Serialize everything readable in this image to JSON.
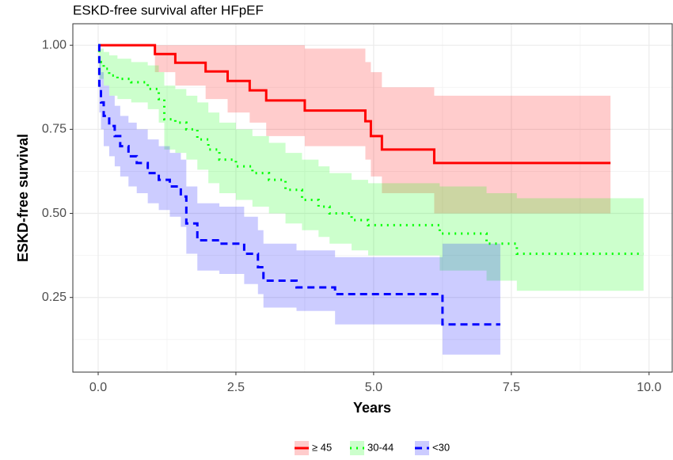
{
  "chart_data": {
    "type": "step",
    "title": "ESKD-free survival after HFpEF",
    "xlabel": "Years",
    "ylabel": "ESKD-free survival",
    "xlim": [
      -0.46,
      10.42
    ],
    "ylim": [
      0.028,
      1.064
    ],
    "xticks": [
      {
        "value": 0,
        "label": "0.0"
      },
      2.5,
      {
        "value": 5,
        "label": "5.0"
      },
      7.5,
      {
        "value": 10,
        "label": "10.0"
      }
    ],
    "yticks": [
      0.25,
      {
        "value": 0.5,
        "label": "0.50"
      },
      0.75,
      {
        "value": 1,
        "label": "1.00"
      }
    ],
    "grid": true,
    "legend": "bottom",
    "series": [
      {
        "name": "≥ 45",
        "color": "#ff0000",
        "dash": "solid",
        "x": [
          0,
          1.03,
          1.4,
          1.95,
          2.35,
          2.75,
          3.05,
          3.75,
          4.85,
          4.95,
          5.15,
          6.1,
          9.3
        ],
        "values": [
          1.0,
          0.974,
          0.948,
          0.922,
          0.894,
          0.866,
          0.836,
          0.806,
          0.774,
          0.73,
          0.69,
          0.65,
          0.65
        ],
        "upper": [
          1.0,
          1.0,
          1.0,
          1.0,
          1.0,
          1.0,
          1.0,
          0.99,
          0.95,
          0.92,
          0.875,
          0.85,
          0.85
        ],
        "lower": [
          1.0,
          0.92,
          0.88,
          0.84,
          0.8,
          0.77,
          0.73,
          0.7,
          0.66,
          0.61,
          0.56,
          0.5,
          0.5
        ]
      },
      {
        "name": "30-44",
        "color": "#00ff00",
        "dash": "dotted",
        "x": [
          0,
          0.02,
          0.1,
          0.2,
          0.35,
          0.6,
          0.9,
          1.1,
          1.2,
          1.4,
          1.6,
          1.8,
          2.0,
          2.2,
          2.5,
          2.8,
          3.1,
          3.4,
          3.7,
          4.0,
          4.2,
          4.6,
          4.9,
          6.2,
          7.05,
          7.6,
          9.9
        ],
        "values": [
          1.0,
          0.95,
          0.93,
          0.91,
          0.9,
          0.89,
          0.87,
          0.84,
          0.78,
          0.77,
          0.75,
          0.72,
          0.69,
          0.66,
          0.64,
          0.62,
          0.6,
          0.57,
          0.54,
          0.52,
          0.5,
          0.48,
          0.465,
          0.44,
          0.41,
          0.38,
          0.38
        ],
        "upper": [
          1.0,
          0.99,
          0.98,
          0.97,
          0.96,
          0.95,
          0.94,
          0.92,
          0.88,
          0.87,
          0.85,
          0.83,
          0.8,
          0.77,
          0.75,
          0.73,
          0.71,
          0.68,
          0.66,
          0.64,
          0.62,
          0.6,
          0.59,
          0.58,
          0.56,
          0.545,
          0.545
        ],
        "lower": [
          1.0,
          0.9,
          0.88,
          0.85,
          0.84,
          0.83,
          0.81,
          0.77,
          0.69,
          0.68,
          0.66,
          0.63,
          0.59,
          0.56,
          0.54,
          0.52,
          0.5,
          0.47,
          0.45,
          0.43,
          0.41,
          0.39,
          0.375,
          0.33,
          0.3,
          0.27,
          0.27
        ]
      },
      {
        "name": "<30",
        "color": "#0000ff",
        "dash": "dashed",
        "x": [
          0,
          0.02,
          0.05,
          0.1,
          0.2,
          0.3,
          0.4,
          0.55,
          0.7,
          0.9,
          1.1,
          1.3,
          1.5,
          1.6,
          1.8,
          2.2,
          2.65,
          2.9,
          3.0,
          3.6,
          4.3,
          6.25,
          7.3
        ],
        "values": [
          1.0,
          0.88,
          0.83,
          0.79,
          0.76,
          0.73,
          0.7,
          0.67,
          0.65,
          0.62,
          0.6,
          0.58,
          0.55,
          0.47,
          0.42,
          0.41,
          0.38,
          0.34,
          0.3,
          0.28,
          0.26,
          0.17,
          0.17
        ],
        "upper": [
          1.0,
          0.95,
          0.92,
          0.88,
          0.85,
          0.82,
          0.79,
          0.77,
          0.75,
          0.72,
          0.7,
          0.68,
          0.66,
          0.58,
          0.53,
          0.52,
          0.49,
          0.45,
          0.41,
          0.39,
          0.37,
          0.41,
          0.41
        ],
        "lower": [
          1.0,
          0.8,
          0.75,
          0.7,
          0.67,
          0.64,
          0.61,
          0.58,
          0.56,
          0.53,
          0.51,
          0.49,
          0.46,
          0.38,
          0.33,
          0.32,
          0.29,
          0.26,
          0.22,
          0.21,
          0.17,
          0.08,
          0.08
        ]
      }
    ]
  }
}
